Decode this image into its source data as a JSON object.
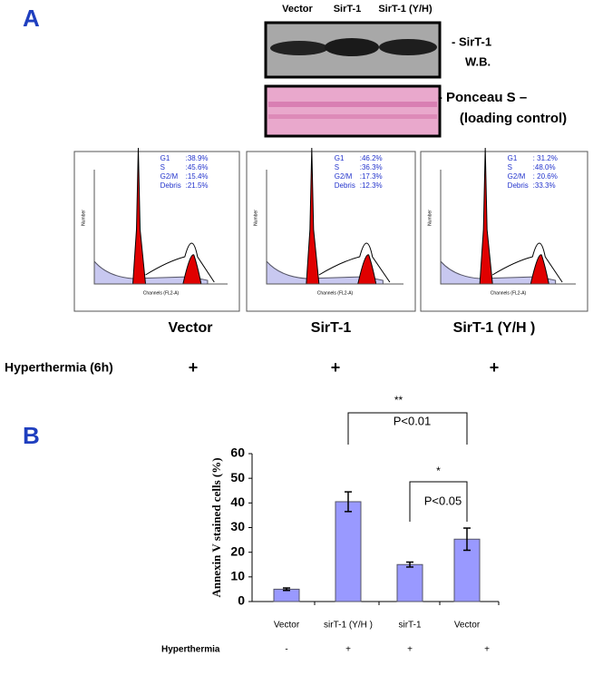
{
  "panel_a": {
    "label": "A",
    "lanes": [
      "Vector",
      "SirT-1",
      "SirT-1 (Y/H)"
    ],
    "blot_labels": [
      "- SirT-1",
      "W.B."
    ],
    "ponceau_labels": [
      "-  Ponceau S –",
      "(loading control)"
    ],
    "flow": [
      {
        "name": "Vector",
        "stats": [
          [
            "G1",
            ":38.9%"
          ],
          [
            "S",
            ":45.6%"
          ],
          [
            "G2/M",
            ":15.4%"
          ],
          [
            "Debris",
            ":21.5%"
          ]
        ]
      },
      {
        "name": "SirT-1",
        "stats": [
          [
            "G1",
            ":46.2%"
          ],
          [
            "S",
            ":36.3%"
          ],
          [
            "G2/M",
            ":17.3%"
          ],
          [
            "Debris",
            ":12.3%"
          ]
        ]
      },
      {
        "name": "SirT-1 (Y/H )",
        "stats": [
          [
            "G1",
            ": 31.2%"
          ],
          [
            "S",
            ":48.0%"
          ],
          [
            "G2/M",
            ": 20.6%"
          ],
          [
            "Debris",
            ":33.3%"
          ]
        ]
      }
    ],
    "flow_xlabel": "Channels (FL2-A)",
    "flow_ylabel": "Number",
    "hyperthermia": {
      "label": "Hyperthermia (6h)",
      "marks": [
        "+",
        "+",
        "+"
      ]
    }
  },
  "chart_data": {
    "type": "bar",
    "label": "B",
    "ylabel": "Annexin V stained cells (%)",
    "categories": [
      "Vector",
      "sirT-1  (Y/H )",
      "sirT-1",
      "Vector"
    ],
    "values": [
      5,
      40.5,
      15,
      25.3
    ],
    "errors": [
      0.5,
      4,
      1,
      4.5
    ],
    "color": "#9999ff",
    "ylim": [
      0,
      60
    ],
    "yticks": [
      0,
      10,
      20,
      30,
      40,
      50,
      60
    ],
    "row_label": "Hyperthermia",
    "row_values": [
      "-",
      "+",
      "+",
      "+"
    ],
    "annotations": [
      [
        "**",
        "P<0.01"
      ],
      [
        "*",
        "P<0.05"
      ]
    ]
  }
}
